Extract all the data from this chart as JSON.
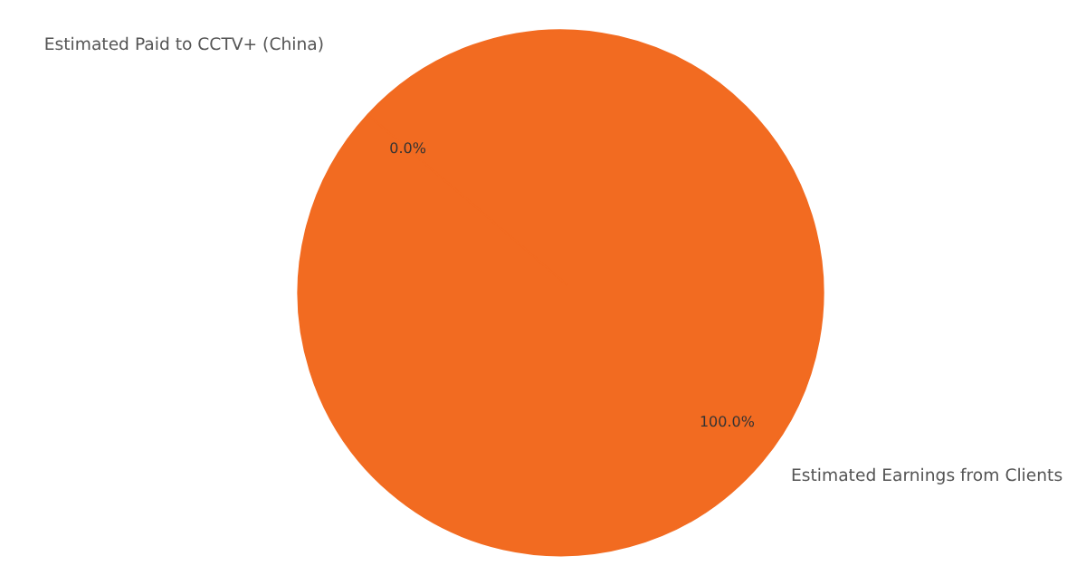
{
  "chart_data": {
    "type": "pie",
    "categories": [
      "Estimated Paid to CCTV+ (China)",
      "Estimated Earnings from Clients"
    ],
    "values": [
      0.0,
      100.0
    ],
    "colors": [
      "#1f77b4",
      "#f26b21"
    ],
    "value_labels": [
      "0.0%",
      "100.0%"
    ]
  }
}
